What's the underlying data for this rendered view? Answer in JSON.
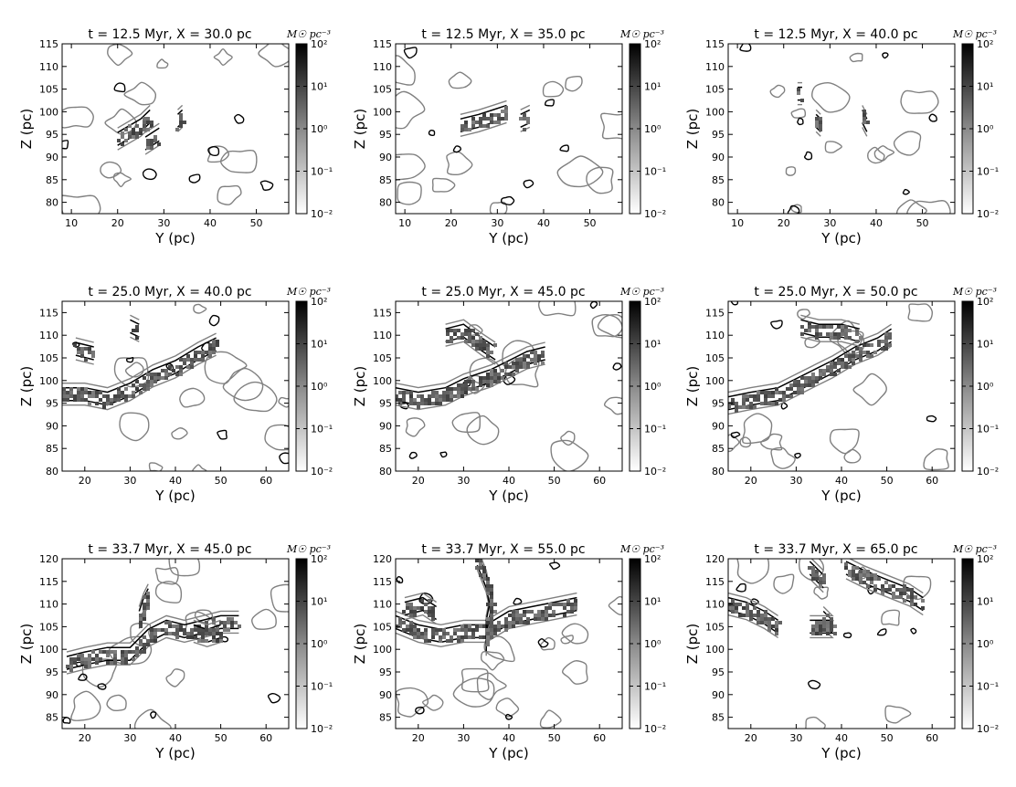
{
  "figure": {
    "colorbar_label": "M☉ pc⁻³",
    "colorbar_ticks": [
      "10⁻²",
      "10⁻¹",
      "10⁰",
      "10¹",
      "10²"
    ],
    "colormap": "gray_r",
    "contour_colors": {
      "outer": "#808080",
      "inner": "#000000"
    }
  },
  "chart_data": [
    {
      "type": "heatmap",
      "title": "t = 12.5 Myr, X = 30.0 pc",
      "xlabel": "Y (pc)",
      "ylabel": "Z (pc)",
      "xlim": [
        8,
        57
      ],
      "ylim": [
        77.5,
        115
      ],
      "xticks": [
        10,
        20,
        30,
        40,
        50
      ],
      "yticks": [
        80,
        85,
        90,
        95,
        100,
        105,
        110,
        115
      ],
      "clim": [
        0.01,
        100
      ],
      "scale": "log",
      "filaments": [
        [
          [
            20,
            94
          ],
          [
            25,
            97
          ],
          [
            27,
            99
          ]
        ],
        [
          [
            26,
            93
          ],
          [
            29,
            95
          ]
        ],
        [
          [
            33,
            98
          ],
          [
            34,
            99
          ]
        ]
      ]
    },
    {
      "type": "heatmap",
      "title": "t = 12.5 Myr, X = 35.0 pc",
      "xlabel": "Y (pc)",
      "ylabel": "Z (pc)",
      "xlim": [
        8,
        57
      ],
      "ylim": [
        77.5,
        115
      ],
      "xticks": [
        10,
        20,
        30,
        40,
        50
      ],
      "yticks": [
        80,
        85,
        90,
        95,
        100,
        105,
        110,
        115
      ],
      "clim": [
        0.01,
        100
      ],
      "scale": "log",
      "filaments": [
        [
          [
            22,
            97
          ],
          [
            26,
            98
          ],
          [
            29,
            99
          ],
          [
            32,
            100
          ]
        ],
        [
          [
            35,
            98
          ],
          [
            37,
            99
          ]
        ]
      ]
    },
    {
      "type": "heatmap",
      "title": "t = 12.5 Myr, X = 40.0 pc",
      "xlabel": "Y (pc)",
      "ylabel": "Z (pc)",
      "xlim": [
        8,
        57
      ],
      "ylim": [
        77.5,
        115
      ],
      "xticks": [
        10,
        20,
        30,
        40,
        50
      ],
      "yticks": [
        80,
        85,
        90,
        95,
        100,
        105,
        110,
        115
      ],
      "clim": [
        0.01,
        100
      ],
      "scale": "log",
      "filaments": [
        [
          [
            27,
            98
          ],
          [
            28,
            97
          ]
        ],
        [
          [
            37,
            99
          ],
          [
            38,
            97
          ]
        ],
        [
          [
            23,
            104
          ],
          [
            24,
            104
          ]
        ]
      ]
    },
    {
      "type": "heatmap",
      "title": "t = 25.0 Myr, X = 40.0 pc",
      "xlabel": "Y (pc)",
      "ylabel": "Z (pc)",
      "xlim": [
        15,
        65
      ],
      "ylim": [
        80,
        117.5
      ],
      "xticks": [
        20,
        30,
        40,
        50,
        60
      ],
      "yticks": [
        80,
        85,
        90,
        95,
        100,
        105,
        110,
        115
      ],
      "clim": [
        0.01,
        100
      ],
      "scale": "log",
      "filaments": [
        [
          [
            15,
            97
          ],
          [
            20,
            97
          ],
          [
            25,
            96
          ],
          [
            30,
            98
          ],
          [
            35,
            101
          ],
          [
            40,
            103
          ],
          [
            45,
            106
          ],
          [
            49,
            108
          ]
        ],
        [
          [
            18,
            107
          ],
          [
            22,
            106
          ]
        ],
        [
          [
            30,
            112
          ],
          [
            32,
            111
          ]
        ]
      ]
    },
    {
      "type": "heatmap",
      "title": "t = 25.0 Myr, X = 45.0 pc",
      "xlabel": "Y (pc)",
      "ylabel": "Z (pc)",
      "xlim": [
        15,
        65
      ],
      "ylim": [
        80,
        117.5
      ],
      "xticks": [
        20,
        30,
        40,
        50,
        60
      ],
      "yticks": [
        80,
        85,
        90,
        95,
        100,
        105,
        110,
        115
      ],
      "clim": [
        0.01,
        100
      ],
      "scale": "log",
      "filaments": [
        [
          [
            15,
            97
          ],
          [
            20,
            96
          ],
          [
            26,
            97
          ],
          [
            30,
            99
          ],
          [
            36,
            101
          ],
          [
            40,
            103
          ],
          [
            44,
            105
          ],
          [
            48,
            106
          ]
        ],
        [
          [
            26,
            110
          ],
          [
            30,
            111
          ],
          [
            34,
            108
          ],
          [
            37,
            106
          ]
        ]
      ]
    },
    {
      "type": "heatmap",
      "title": "t = 25.0 Myr, X = 50.0 pc",
      "xlabel": "Y (pc)",
      "ylabel": "Z (pc)",
      "xlim": [
        15,
        65
      ],
      "ylim": [
        80,
        117.5
      ],
      "xticks": [
        20,
        30,
        40,
        50,
        60
      ],
      "yticks": [
        80,
        85,
        90,
        95,
        100,
        105,
        110,
        115
      ],
      "clim": [
        0.01,
        100
      ],
      "scale": "log",
      "filaments": [
        [
          [
            15,
            95
          ],
          [
            20,
            96
          ],
          [
            26,
            97
          ],
          [
            30,
            99
          ],
          [
            34,
            101
          ],
          [
            38,
            103
          ],
          [
            43,
            106
          ],
          [
            48,
            108
          ],
          [
            51,
            110
          ]
        ],
        [
          [
            31,
            112
          ],
          [
            35,
            111
          ],
          [
            40,
            111
          ],
          [
            44,
            110
          ]
        ]
      ]
    },
    {
      "type": "heatmap",
      "title": "t = 33.7 Myr, X = 45.0 pc",
      "xlabel": "Y (pc)",
      "ylabel": "Z (pc)",
      "xlim": [
        15,
        65
      ],
      "ylim": [
        82.5,
        120
      ],
      "xticks": [
        20,
        30,
        40,
        50,
        60
      ],
      "yticks": [
        85,
        90,
        95,
        100,
        105,
        110,
        115,
        120
      ],
      "clim": [
        0.01,
        100
      ],
      "scale": "log",
      "filaments": [
        [
          [
            16,
            97
          ],
          [
            20,
            98
          ],
          [
            25,
            99
          ],
          [
            30,
            99
          ],
          [
            34,
            103
          ],
          [
            38,
            105
          ],
          [
            42,
            104
          ],
          [
            46,
            105
          ],
          [
            50,
            106
          ],
          [
            54,
            106
          ]
        ],
        [
          [
            32,
            107
          ],
          [
            33,
            110
          ],
          [
            34,
            112
          ]
        ],
        [
          [
            44,
            104
          ],
          [
            47,
            103
          ],
          [
            50,
            104
          ]
        ]
      ]
    },
    {
      "type": "heatmap",
      "title": "t = 33.7 Myr, X = 55.0 pc",
      "xlabel": "Y (pc)",
      "ylabel": "Z (pc)",
      "xlim": [
        15,
        65
      ],
      "ylim": [
        82.5,
        120
      ],
      "xticks": [
        20,
        30,
        40,
        50,
        60
      ],
      "yticks": [
        85,
        90,
        95,
        100,
        105,
        110,
        115,
        120
      ],
      "clim": [
        0.01,
        100
      ],
      "scale": "log",
      "filaments": [
        [
          [
            15,
            106
          ],
          [
            20,
            104
          ],
          [
            25,
            103
          ],
          [
            30,
            104
          ],
          [
            35,
            104
          ],
          [
            40,
            107
          ],
          [
            45,
            108
          ],
          [
            50,
            109
          ],
          [
            55,
            110
          ]
        ],
        [
          [
            33,
            120
          ],
          [
            35,
            115
          ],
          [
            36,
            110
          ],
          [
            35,
            105
          ],
          [
            35,
            101
          ]
        ],
        [
          [
            17,
            109
          ],
          [
            21,
            110
          ],
          [
            24,
            108
          ]
        ]
      ]
    },
    {
      "type": "heatmap",
      "title": "t = 33.7 Myr, X = 65.0 pc",
      "xlabel": "Y (pc)",
      "ylabel": "Z (pc)",
      "xlim": [
        15,
        65
      ],
      "ylim": [
        82.5,
        120
      ],
      "xticks": [
        20,
        30,
        40,
        50,
        60
      ],
      "yticks": [
        85,
        90,
        95,
        100,
        105,
        110,
        115,
        120
      ],
      "clim": [
        0.01,
        100
      ],
      "scale": "log",
      "filaments": [
        [
          [
            15,
            110
          ],
          [
            19,
            109
          ],
          [
            23,
            107
          ],
          [
            26,
            105
          ]
        ],
        [
          [
            33,
            118
          ],
          [
            36,
            115
          ]
        ],
        [
          [
            41,
            118
          ],
          [
            45,
            116
          ],
          [
            50,
            114
          ],
          [
            55,
            112
          ],
          [
            58,
            110
          ]
        ],
        [
          [
            36,
            107
          ],
          [
            38,
            105
          ],
          [
            33,
            105
          ]
        ]
      ]
    }
  ]
}
